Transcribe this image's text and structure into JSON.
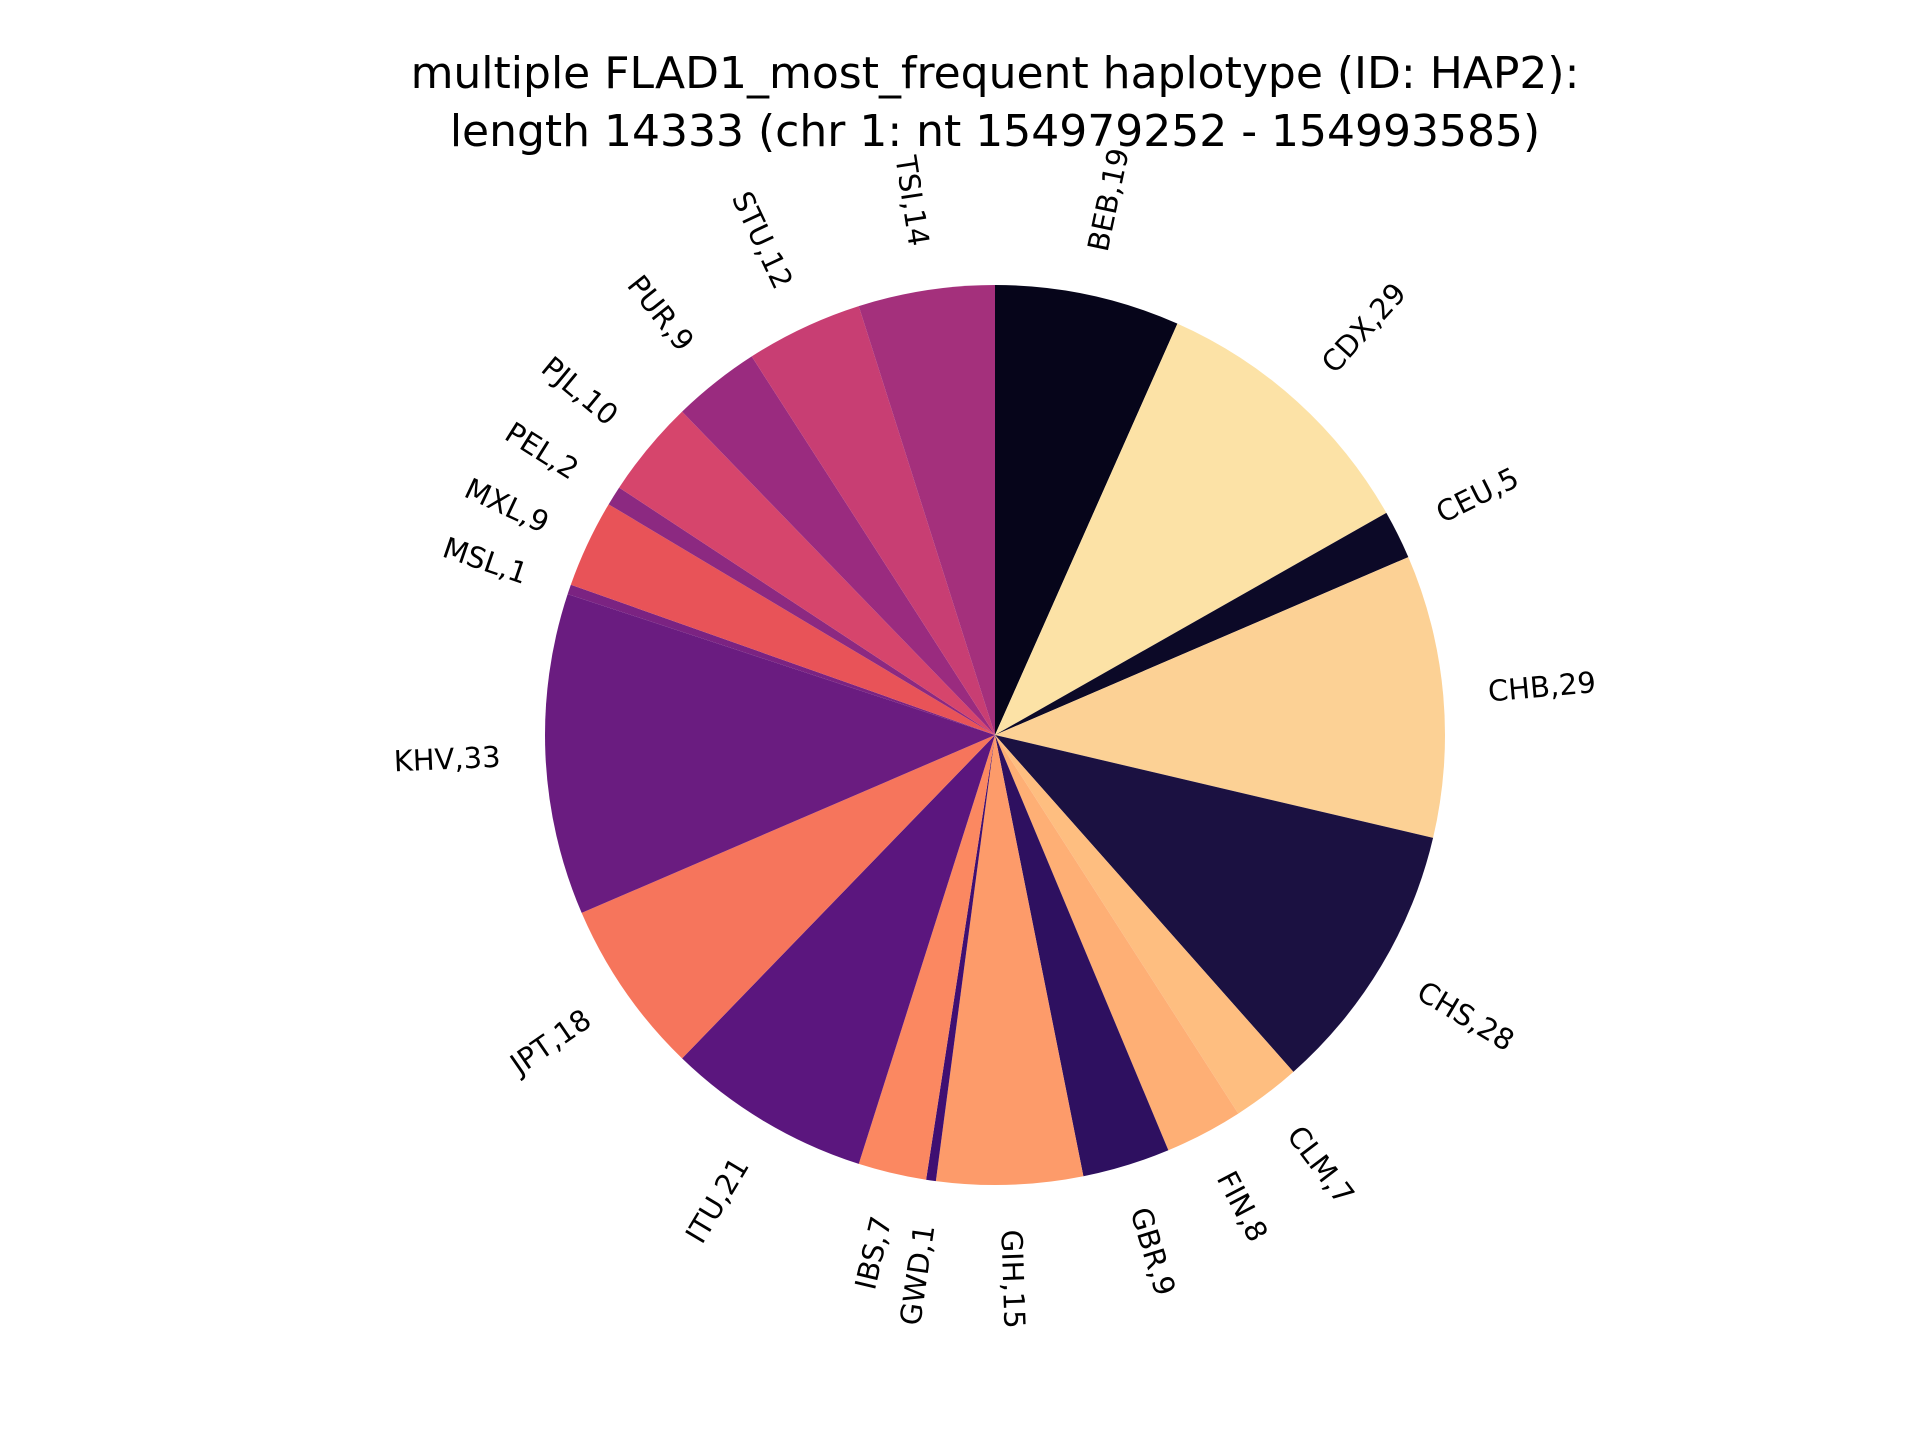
{
  "chart_data": {
    "type": "pie",
    "title_lines": [
      "multiple FLAD1_most_frequent haplotype (ID: HAP2):",
      "length 14333 (chr 1: nt 154979252 - 154993585)"
    ],
    "slices": [
      {
        "label": "BEB,19",
        "value": 19,
        "color": "#06051a"
      },
      {
        "label": "CDX,29",
        "value": 29,
        "color": "#fce2a6"
      },
      {
        "label": "CEU,5",
        "value": 5,
        "color": "#0c0927"
      },
      {
        "label": "CHB,29",
        "value": 29,
        "color": "#fcd195"
      },
      {
        "label": "CHS,28",
        "value": 28,
        "color": "#1b1141"
      },
      {
        "label": "CLM,7",
        "value": 7,
        "color": "#febe80"
      },
      {
        "label": "FIN,8",
        "value": 8,
        "color": "#feaf75"
      },
      {
        "label": "GBR,9",
        "value": 9,
        "color": "#2e1060"
      },
      {
        "label": "GIH,15",
        "value": 15,
        "color": "#fd9b6a"
      },
      {
        "label": "GWD,1",
        "value": 1,
        "color": "#3f0f72"
      },
      {
        "label": "IBS,7",
        "value": 7,
        "color": "#fb8861"
      },
      {
        "label": "ITU,21",
        "value": 21,
        "color": "#5b167e"
      },
      {
        "label": "JPT,18",
        "value": 18,
        "color": "#f6755c"
      },
      {
        "label": "KHV,33",
        "value": 33,
        "color": "#6a1c80"
      },
      {
        "label": "MSL,1",
        "value": 1,
        "color": "#7b2382"
      },
      {
        "label": "MXL,9",
        "value": 9,
        "color": "#e85358"
      },
      {
        "label": "PEL,2",
        "value": 2,
        "color": "#8c2981"
      },
      {
        "label": "PJL,10",
        "value": 10,
        "color": "#d6456c"
      },
      {
        "label": "PUR,9",
        "value": 9,
        "color": "#9a2b7f"
      },
      {
        "label": "STU,12",
        "value": 12,
        "color": "#c83e73"
      },
      {
        "label": "TSI,14",
        "value": 14,
        "color": "#a4307c"
      }
    ],
    "start_angle": "12 o'clock",
    "direction": "clockwise",
    "legend": "none",
    "grid": false
  }
}
